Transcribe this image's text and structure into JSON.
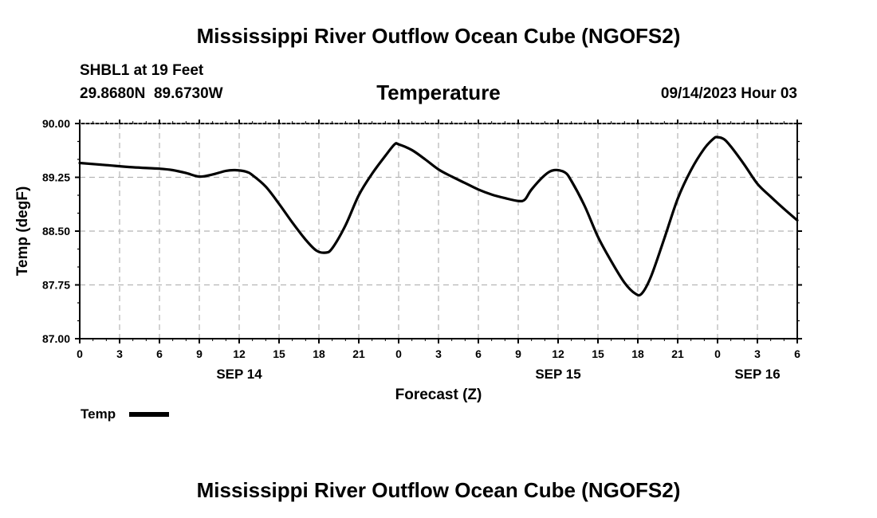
{
  "header": {
    "title_top": "Mississippi River Outflow Ocean Cube (NGOFS2)",
    "station_line": "SHBL1 at 19 Feet",
    "coords_line": "29.8680N  89.6730W",
    "variable": "Temperature",
    "datetime": "09/14/2023 Hour 03"
  },
  "footer": {
    "title_bottom": "Mississippi River Outflow Ocean Cube (NGOFS2)"
  },
  "legend": {
    "label": "Temp"
  },
  "chart_data": {
    "type": "line",
    "title": "Temperature",
    "xlabel": "Forecast (Z)",
    "ylabel": "Temp (degF)",
    "ylim": [
      87.0,
      90.0
    ],
    "yticks": [
      "87.00",
      "87.75",
      "88.50",
      "89.25",
      "90.00"
    ],
    "ytick_values": [
      87.0,
      87.75,
      88.5,
      89.25,
      90.0
    ],
    "xlim": [
      0,
      54
    ],
    "xtick_hours": [
      0,
      3,
      6,
      9,
      12,
      15,
      18,
      21,
      24,
      27,
      30,
      33,
      36,
      39,
      42,
      45,
      48,
      51,
      54
    ],
    "xtick_labels": [
      "0",
      "3",
      "6",
      "9",
      "12",
      "15",
      "18",
      "21",
      "0",
      "3",
      "6",
      "9",
      "12",
      "15",
      "18",
      "21",
      "0",
      "3",
      "6"
    ],
    "date_labels": [
      {
        "hour": 12,
        "text": "SEP 14"
      },
      {
        "hour": 36,
        "text": "SEP 15"
      },
      {
        "hour": 51,
        "text": "SEP 16"
      }
    ],
    "grid": true,
    "series": [
      {
        "name": "Temp",
        "x": [
          0,
          2,
          4,
          6,
          7,
          8,
          9,
          10,
          11,
          11.7,
          12.5,
          13,
          14,
          15,
          16,
          17,
          17.8,
          18.5,
          19,
          20,
          21,
          22,
          23,
          23.7,
          24,
          25,
          26,
          27,
          28,
          29,
          30,
          31,
          32,
          33,
          33.5,
          34,
          35,
          35.7,
          36.5,
          37,
          38,
          39,
          40,
          41,
          41.8,
          42.3,
          43,
          44,
          45,
          46,
          47,
          47.7,
          48,
          48.5,
          49,
          50,
          51,
          52,
          53,
          54
        ],
        "values": [
          89.45,
          89.42,
          89.39,
          89.37,
          89.35,
          89.31,
          89.26,
          89.29,
          89.34,
          89.35,
          89.33,
          89.28,
          89.12,
          88.88,
          88.62,
          88.38,
          88.23,
          88.2,
          88.26,
          88.58,
          89.0,
          89.3,
          89.55,
          89.71,
          89.71,
          89.63,
          89.5,
          89.36,
          89.26,
          89.17,
          89.08,
          89.01,
          88.96,
          88.92,
          88.94,
          89.08,
          89.28,
          89.35,
          89.32,
          89.2,
          88.85,
          88.42,
          88.08,
          87.78,
          87.63,
          87.63,
          87.87,
          88.4,
          88.95,
          89.35,
          89.65,
          89.79,
          89.81,
          89.78,
          89.68,
          89.43,
          89.16,
          88.98,
          88.81,
          88.65
        ]
      }
    ]
  }
}
